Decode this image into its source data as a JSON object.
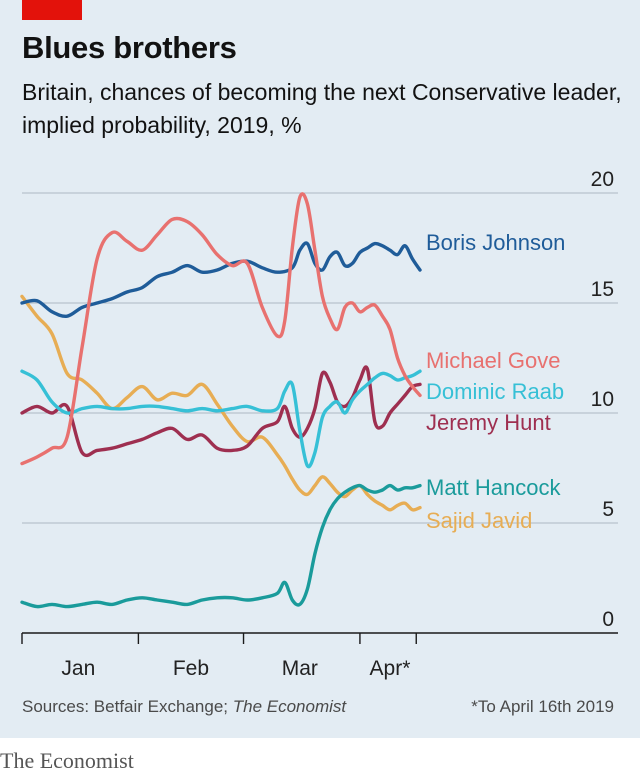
{
  "header": {
    "title": "Blues brothers",
    "subtitle": "Britain, chances of becoming the next Conservative leader, implied probability, 2019, %"
  },
  "footer": {
    "source_prefix": "Sources: Betfair Exchange; ",
    "source_italic": "The Economist",
    "footnote": "*To April 16th 2019",
    "brand": "The Economist"
  },
  "chart_data": {
    "type": "line",
    "title": "Blues brothers",
    "subtitle": "Britain, chances of becoming the next Conservative leader, implied probability, 2019, %",
    "xlabel": "",
    "ylabel": "",
    "x_range": [
      0,
      106
    ],
    "ylim": [
      0,
      20
    ],
    "y_ticks": [
      0,
      5,
      10,
      15,
      20
    ],
    "y_axis_side": "right",
    "x_ticks": [
      {
        "label": "Jan",
        "at": 0,
        "label_at": 15
      },
      {
        "label": "Feb",
        "at": 31,
        "label_at": 45
      },
      {
        "label": "Mar",
        "at": 59,
        "label_at": 74
      },
      {
        "label": "Apr*",
        "at": 90,
        "label_at": 98
      },
      {
        "label": "",
        "at": 105
      }
    ],
    "grid": true,
    "legend": "direct labels at line ends",
    "series": [
      {
        "name": "Boris Johnson",
        "color": "#1f5c99",
        "x": [
          0,
          4,
          8,
          12,
          16,
          20,
          24,
          28,
          32,
          36,
          40,
          44,
          48,
          52,
          56,
          60,
          64,
          68,
          72,
          74,
          76,
          78,
          80,
          82,
          84,
          86,
          88,
          90,
          92,
          94,
          96,
          98,
          100,
          102,
          104,
          106
        ],
        "values": [
          15.0,
          15.1,
          14.6,
          14.4,
          14.8,
          15.0,
          15.2,
          15.5,
          15.7,
          16.2,
          16.4,
          16.7,
          16.4,
          16.5,
          16.8,
          16.9,
          16.6,
          16.4,
          16.6,
          17.4,
          17.7,
          16.8,
          16.5,
          17.1,
          17.3,
          16.7,
          16.8,
          17.3,
          17.5,
          17.7,
          17.6,
          17.4,
          17.2,
          17.6,
          17.0,
          16.5
        ]
      },
      {
        "name": "Michael Gove",
        "color": "#e8716f",
        "x": [
          0,
          4,
          8,
          12,
          16,
          20,
          24,
          28,
          32,
          36,
          40,
          44,
          48,
          52,
          56,
          60,
          64,
          68,
          70,
          72,
          74,
          76,
          78,
          80,
          82,
          84,
          86,
          88,
          90,
          92,
          94,
          96,
          98,
          100,
          102,
          104,
          106
        ],
        "values": [
          7.7,
          8.0,
          8.4,
          8.9,
          13.0,
          17.0,
          18.2,
          17.8,
          17.4,
          18.1,
          18.8,
          18.7,
          18.1,
          17.2,
          16.7,
          16.8,
          14.8,
          13.5,
          14.2,
          17.5,
          19.8,
          19.5,
          17.4,
          15.3,
          14.3,
          13.8,
          14.8,
          15.0,
          14.6,
          14.8,
          14.9,
          14.4,
          13.8,
          12.5,
          11.7,
          11.2,
          10.8
        ]
      },
      {
        "name": "Dominic Raab",
        "color": "#36c0d6",
        "x": [
          0,
          4,
          8,
          12,
          16,
          20,
          24,
          28,
          32,
          36,
          40,
          44,
          48,
          52,
          56,
          60,
          64,
          68,
          70,
          72,
          74,
          76,
          78,
          80,
          82,
          84,
          86,
          88,
          90,
          92,
          94,
          96,
          98,
          100,
          102,
          104,
          106
        ],
        "values": [
          11.9,
          11.5,
          10.5,
          10.0,
          10.2,
          10.3,
          10.2,
          10.2,
          10.3,
          10.3,
          10.2,
          10.1,
          10.2,
          10.1,
          10.2,
          10.3,
          10.1,
          10.2,
          11.0,
          11.3,
          9.2,
          7.6,
          8.2,
          9.8,
          10.3,
          10.5,
          10.0,
          10.6,
          11.0,
          11.3,
          11.6,
          11.8,
          11.7,
          11.5,
          11.6,
          11.7,
          11.9
        ]
      },
      {
        "name": "Jeremy Hunt",
        "color": "#9e2f50",
        "x": [
          0,
          4,
          8,
          12,
          16,
          20,
          24,
          28,
          32,
          36,
          40,
          44,
          48,
          52,
          56,
          60,
          64,
          68,
          70,
          72,
          74,
          76,
          78,
          80,
          82,
          84,
          86,
          88,
          90,
          92,
          94,
          96,
          98,
          100,
          102,
          104,
          106
        ],
        "values": [
          10.0,
          10.3,
          10.0,
          10.3,
          8.2,
          8.3,
          8.4,
          8.6,
          8.8,
          9.1,
          9.3,
          8.8,
          9.0,
          8.4,
          8.3,
          8.5,
          9.3,
          9.6,
          10.3,
          9.3,
          8.9,
          9.3,
          10.2,
          11.8,
          11.4,
          10.5,
          10.3,
          10.7,
          11.5,
          12.0,
          9.6,
          9.4,
          10.0,
          10.4,
          10.8,
          11.2,
          11.3
        ]
      },
      {
        "name": "Matt Hancock",
        "color": "#1a9b9b",
        "x": [
          0,
          4,
          8,
          12,
          16,
          20,
          24,
          28,
          32,
          36,
          40,
          44,
          48,
          52,
          56,
          60,
          64,
          68,
          70,
          72,
          74,
          76,
          78,
          80,
          82,
          84,
          86,
          88,
          90,
          92,
          94,
          96,
          98,
          100,
          102,
          104,
          106
        ],
        "values": [
          1.4,
          1.2,
          1.3,
          1.2,
          1.3,
          1.4,
          1.3,
          1.5,
          1.6,
          1.5,
          1.4,
          1.3,
          1.5,
          1.6,
          1.6,
          1.5,
          1.6,
          1.8,
          2.3,
          1.5,
          1.3,
          2.0,
          3.6,
          4.8,
          5.6,
          6.1,
          6.4,
          6.6,
          6.7,
          6.5,
          6.4,
          6.5,
          6.7,
          6.5,
          6.6,
          6.6,
          6.7
        ]
      },
      {
        "name": "Sajid Javid",
        "color": "#e7ad54",
        "x": [
          0,
          4,
          8,
          12,
          16,
          20,
          24,
          28,
          32,
          36,
          40,
          44,
          48,
          52,
          56,
          60,
          64,
          68,
          70,
          72,
          74,
          76,
          78,
          80,
          82,
          84,
          86,
          88,
          90,
          92,
          94,
          96,
          98,
          100,
          102,
          104,
          106
        ],
        "values": [
          15.3,
          14.4,
          13.6,
          11.8,
          11.5,
          10.9,
          10.2,
          10.7,
          11.2,
          10.6,
          10.9,
          10.8,
          11.3,
          10.4,
          9.4,
          8.7,
          8.9,
          8.1,
          7.6,
          7.0,
          6.5,
          6.3,
          6.7,
          7.1,
          6.8,
          6.4,
          6.2,
          6.5,
          6.7,
          6.3,
          6.0,
          5.8,
          5.6,
          5.8,
          5.9,
          5.6,
          5.7
        ]
      }
    ]
  }
}
